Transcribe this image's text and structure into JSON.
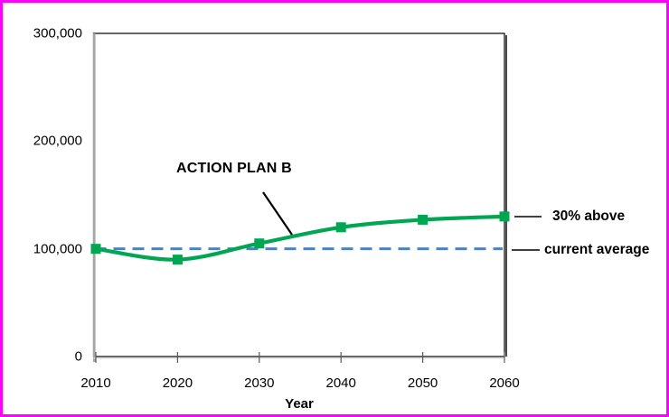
{
  "frame": {
    "border_color": "#ff00ff",
    "background_color": "#ffffff"
  },
  "chart_data": {
    "type": "line",
    "title": "",
    "xlabel": "Year",
    "ylabel": "",
    "x": [
      2010,
      2020,
      2030,
      2040,
      2050,
      2060
    ],
    "xtick_labels": [
      "2010",
      "2020",
      "2030",
      "2040",
      "2050",
      "2060"
    ],
    "yticks": [
      0,
      100000,
      200000,
      300000
    ],
    "ytick_labels": [
      "0",
      "100,000",
      "200,000",
      "300,000"
    ],
    "xlim": [
      2010,
      2060
    ],
    "ylim": [
      0,
      300000
    ],
    "grid": false,
    "legend": "none",
    "series": [
      {
        "name": "ACTION PLAN B",
        "color": "#00a651",
        "marker": "square",
        "line_style": "solid",
        "values": [
          100000,
          90000,
          105000,
          120000,
          127000,
          130000
        ]
      }
    ],
    "reference_line": {
      "name": "current average",
      "value": 100000,
      "color": "#4f81bd",
      "line_style": "dashed"
    },
    "annotations": [
      {
        "id": "series-label",
        "text": "ACTION PLAN B"
      },
      {
        "id": "end-value-label",
        "text": "30% above"
      },
      {
        "id": "reference-label",
        "text": "current average"
      }
    ]
  }
}
